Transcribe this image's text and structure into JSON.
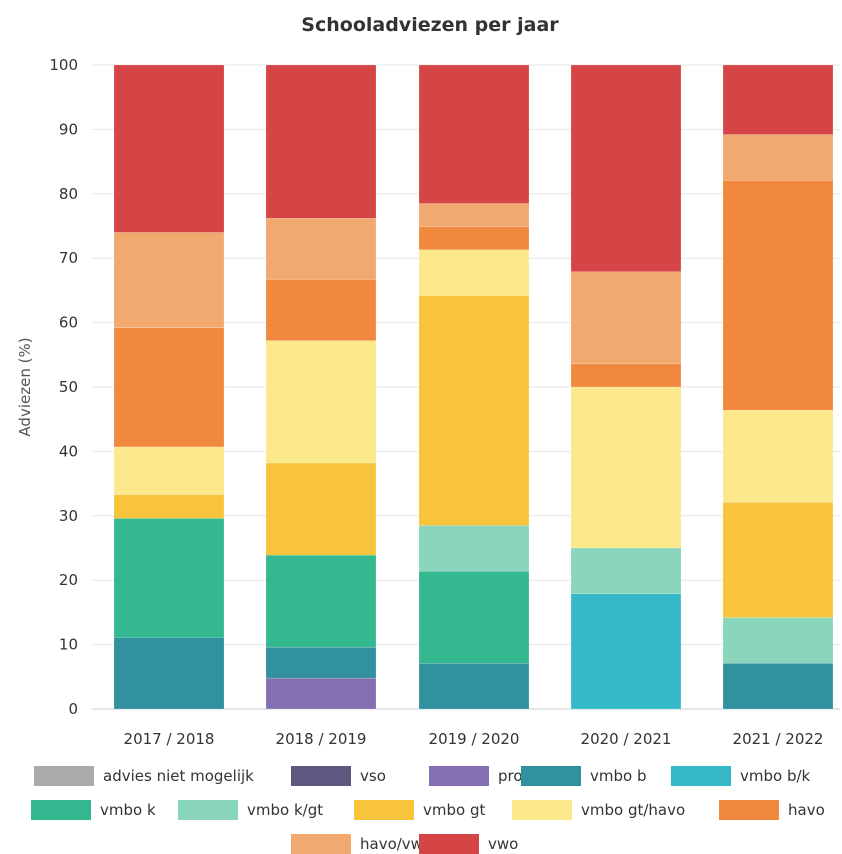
{
  "chart_data": {
    "type": "bar",
    "stacked": true,
    "title": "Schooladviezen per jaar",
    "xlabel": "",
    "ylabel": "Adviezen (%)",
    "ylim": [
      0,
      100
    ],
    "yticks": [
      0,
      10,
      20,
      30,
      40,
      50,
      60,
      70,
      80,
      90,
      100
    ],
    "grid": true,
    "legend_position": "bottom",
    "categories": [
      "2017 / 2018",
      "2018 / 2019",
      "2019 / 2020",
      "2020 / 2021",
      "2021 / 2022"
    ],
    "series": [
      {
        "name": "advies niet mogelijk",
        "color": "#aaaaaa",
        "values": [
          0,
          0,
          0,
          0,
          0
        ]
      },
      {
        "name": "vso",
        "color": "#5f577f",
        "values": [
          0,
          0,
          0,
          0,
          0
        ]
      },
      {
        "name": "pro",
        "color": "#8470b0",
        "values": [
          0,
          4.8,
          0,
          0,
          0
        ]
      },
      {
        "name": "vmbo b",
        "color": "#31919f",
        "values": [
          11.1,
          4.8,
          7.1,
          0,
          7.1
        ]
      },
      {
        "name": "vmbo b/k",
        "color": "#35b9c9",
        "values": [
          0,
          0,
          0,
          17.9,
          0
        ]
      },
      {
        "name": "vmbo k",
        "color": "#34b88f",
        "values": [
          18.5,
          14.3,
          14.3,
          0,
          0
        ]
      },
      {
        "name": "vmbo k/gt",
        "color": "#89d6bd",
        "values": [
          0,
          0,
          7.1,
          7.1,
          7.1
        ]
      },
      {
        "name": "vmbo gt",
        "color": "#f8c43b",
        "values": [
          3.7,
          14.3,
          35.7,
          0,
          17.9
        ]
      },
      {
        "name": "vmbo gt/havo",
        "color": "#fbe88a",
        "values": [
          7.4,
          19.0,
          7.1,
          25.0,
          14.3
        ]
      },
      {
        "name": "havo",
        "color": "#f0883d",
        "values": [
          18.5,
          9.5,
          3.6,
          3.6,
          35.7
        ]
      },
      {
        "name": "havo/vwo",
        "color": "#f2a970",
        "values": [
          14.8,
          9.5,
          3.6,
          14.3,
          7.1
        ]
      },
      {
        "name": "vwo",
        "color": "#d64545",
        "values": [
          26.0,
          23.8,
          21.5,
          32.1,
          10.8
        ]
      }
    ]
  }
}
